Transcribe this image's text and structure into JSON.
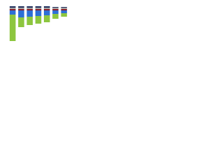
{
  "chart_data": {
    "type": "stacked-bar",
    "categories": [
      null,
      null,
      null,
      null,
      null,
      null,
      null
    ],
    "series": [
      {
        "color": "#8b1e2b",
        "values": [
          2,
          2,
          2,
          2,
          2,
          2,
          2
        ]
      },
      {
        "color": "#a6a6a6",
        "values": [
          2,
          2,
          2,
          2,
          2,
          2,
          2
        ]
      },
      {
        "color": "#1f2f5c",
        "values": [
          2,
          2,
          2,
          2,
          2,
          1,
          1
        ]
      },
      {
        "color": "#2e6fd6",
        "values": [
          -6,
          -10,
          -9,
          -8,
          -7,
          -5,
          -4
        ]
      },
      {
        "color": "#8dc63f",
        "values": [
          -38,
          -14,
          -12,
          -11,
          -10,
          -7,
          -5
        ]
      }
    ],
    "ylim": [
      -50,
      10
    ]
  }
}
